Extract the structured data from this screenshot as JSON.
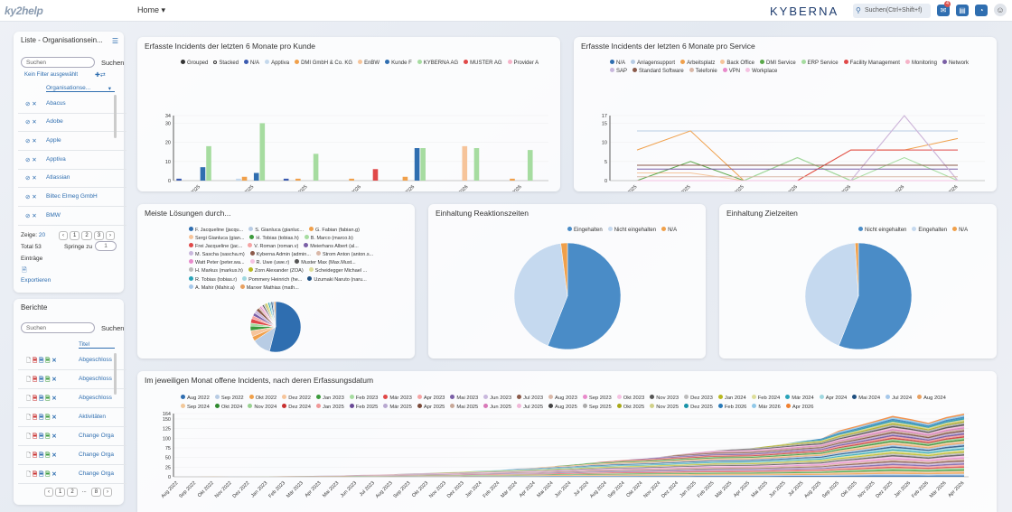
{
  "topbar": {
    "logo": "ky2help",
    "home": "Home",
    "home_caret": "▾",
    "brand": "KYBERNA",
    "search_placeholder": "Suchen(Ctrl+Shift+f)",
    "mail_badge": "4"
  },
  "org_panel": {
    "title": "Liste - Organisationsein...",
    "search_placeholder": "Suchen",
    "search_button": "Suchen",
    "filter_text": "Kein Filter ausgewählt",
    "column_header": "Organisationse...",
    "items": [
      "Abacus",
      "Adobe",
      "Apple",
      "Apptiva",
      "Atlassian",
      "Biltec Elmeg GmbH",
      "BMW"
    ],
    "show_label": "Zeige:",
    "show_value": "20",
    "pages": [
      "‹",
      "1",
      "2",
      "3",
      "›"
    ],
    "total": "Total 53",
    "jump_label": "Springe zu",
    "jump_value": "1",
    "entries": "Einträge",
    "export": "Exportieren"
  },
  "reports_panel": {
    "title": "Berichte",
    "search_placeholder": "Suchen",
    "search_button": "Suchen",
    "column_header": "Titel",
    "items": [
      "Abgeschloss",
      "Abgeschloss",
      "Abgeschloss",
      "Aktivitäten",
      "Change Orga",
      "Change Orga",
      "Change Orga"
    ],
    "pages": [
      "‹",
      "1",
      "2",
      "...",
      "8",
      "›"
    ]
  },
  "chart1": {
    "title": "Erfasste Incidents der letzten 6 Monate pro Kunde"
  },
  "chart2": {
    "title": "Erfasste Incidents der letzten 6 Monate pro Service"
  },
  "chart3": {
    "title": "Meiste Lösungen durch..."
  },
  "chart4": {
    "title": "Einhaltung Reaktionszeiten"
  },
  "chart5": {
    "title": "Einhaltung Zielzeiten"
  },
  "chart6": {
    "title": "Im jeweiligen Monat offene Incidents, nach deren Erfassungsdatum"
  },
  "colors": {
    "accent": "#2f6eb0",
    "pie_blue": "#4a8cc7",
    "pie_light": "#c5d9ef",
    "orange": "#f0a04b"
  },
  "chart_data": [
    {
      "type": "bar",
      "title": "Erfasste Incidents der letzten 6 Monate pro Kunde",
      "categories": [
        "Okt 2025",
        "Nov 2025",
        "Dez 2025",
        "Jan 2026",
        "Feb 2026",
        "Mär 2026",
        "Apr 2026"
      ],
      "ylim": [
        0,
        34
      ],
      "yticks": [
        0,
        10,
        20,
        30,
        34
      ],
      "legend_toggle": [
        "Grouped",
        "Stacked"
      ],
      "series": [
        {
          "name": "N/A",
          "color": "#3b5bb0",
          "values": [
            1,
            0,
            1,
            0,
            0,
            0,
            0
          ]
        },
        {
          "name": "Apptiva",
          "color": "#c4d8ec",
          "values": [
            0,
            1,
            0,
            0,
            0,
            0,
            0
          ]
        },
        {
          "name": "DMI GmbH & Co. KG",
          "color": "#f0a04b",
          "values": [
            0,
            2,
            1,
            1,
            2,
            0,
            1
          ]
        },
        {
          "name": "EnBW",
          "color": "#f6c49a",
          "values": [
            0,
            0,
            0,
            0,
            0,
            18,
            0
          ]
        },
        {
          "name": "Kunde F",
          "color": "#2f6eb0",
          "values": [
            7,
            4,
            0,
            0,
            17,
            0,
            0
          ]
        },
        {
          "name": "KYBERNA AG",
          "color": "#a6dca0",
          "values": [
            18,
            30,
            14,
            0,
            17,
            17,
            16
          ]
        },
        {
          "name": "MUSTER AG",
          "color": "#e04848",
          "values": [
            0,
            0,
            0,
            6,
            0,
            0,
            0
          ]
        },
        {
          "name": "Provider A",
          "color": "#f5b3c8",
          "values": [
            0,
            0,
            0,
            0,
            0,
            0,
            0
          ]
        }
      ]
    },
    {
      "type": "line",
      "title": "Erfasste Incidents der letzten 6 Monate pro Service",
      "categories": [
        "Okt 2025",
        "Nov 2025",
        "Dez 2025",
        "Jan 2026",
        "Feb 2026",
        "Mär 2026",
        "Apr 2026"
      ],
      "ylim": [
        0,
        17
      ],
      "yticks": [
        0,
        5,
        10,
        15,
        17
      ],
      "series": [
        {
          "name": "N/A",
          "color": "#2f6eb0",
          "values": [
            0,
            0,
            0,
            0,
            0,
            0,
            0
          ]
        },
        {
          "name": "Anlagensupport",
          "color": "#b8cce4",
          "values": [
            13,
            13,
            13,
            13,
            13,
            13,
            13
          ]
        },
        {
          "name": "Arbeitsplatz",
          "color": "#f0a04b",
          "values": [
            8,
            13,
            0,
            0,
            8,
            8,
            11
          ]
        },
        {
          "name": "Back Office",
          "color": "#f6c49a",
          "values": [
            2,
            2,
            0,
            0,
            0,
            0,
            0
          ]
        },
        {
          "name": "DMI Service",
          "color": "#5aa84a",
          "values": [
            0,
            5,
            0,
            6,
            0,
            0,
            0
          ]
        },
        {
          "name": "ERP Service",
          "color": "#a6dca0",
          "values": [
            0,
            0,
            0,
            6,
            0,
            6,
            0
          ]
        },
        {
          "name": "Facility Management",
          "color": "#e04848",
          "values": [
            0,
            0,
            0,
            0,
            8,
            8,
            8
          ]
        },
        {
          "name": "Monitoring",
          "color": "#f5b3c8",
          "values": [
            0,
            0,
            0,
            0,
            0,
            17,
            0
          ]
        },
        {
          "name": "Network",
          "color": "#7a5fa6",
          "values": [
            3,
            3,
            3,
            3,
            3,
            3,
            3
          ]
        },
        {
          "name": "SAP",
          "color": "#c9b8dd",
          "values": [
            0,
            0,
            0,
            0,
            0,
            17,
            0
          ]
        },
        {
          "name": "Standard Software",
          "color": "#8b5a4a",
          "values": [
            4,
            4,
            4,
            4,
            4,
            4,
            4
          ]
        },
        {
          "name": "Telefonie",
          "color": "#d9b8a8",
          "values": [
            1,
            1,
            1,
            1,
            1,
            1,
            1
          ]
        },
        {
          "name": "VPN",
          "color": "#e88acb",
          "values": [
            0,
            0,
            0,
            0,
            0,
            0,
            0
          ]
        },
        {
          "name": "Workplace",
          "color": "#f5c2e2",
          "values": [
            0,
            0,
            0,
            0,
            0,
            0,
            0
          ]
        }
      ]
    },
    {
      "type": "pie",
      "title": "Meiste Lösungen durch...",
      "series": [
        {
          "name": "F. Jacqueline (jacqu...",
          "color": "#2f6eb0",
          "value": 55
        },
        {
          "name": "S. Gianluca (gianluc...",
          "color": "#b8cce4",
          "value": 12
        },
        {
          "name": "G. Fabian (fabian.g)",
          "color": "#f0a04b",
          "value": 3
        },
        {
          "name": "Sergi Gianluca (gian...",
          "color": "#f6c49a",
          "value": 4
        },
        {
          "name": "H. Tobias (tobias.h)",
          "color": "#3c9a3c",
          "value": 3
        },
        {
          "name": "B. Marco (marco.b)",
          "color": "#a6dca0",
          "value": 2
        },
        {
          "name": "Frei Jacqueline (jac...",
          "color": "#e04848",
          "value": 3
        },
        {
          "name": "V. Roman (roman.v)",
          "color": "#f5a3a3",
          "value": 2
        },
        {
          "name": "Meierhans Albert (al...",
          "color": "#7a5fa6",
          "value": 2
        },
        {
          "name": "M. Sascha (sascha.m)",
          "color": "#c9b8dd",
          "value": 2
        },
        {
          "name": "Kyberna Admin (admin...",
          "color": "#8b5a4a",
          "value": 2
        },
        {
          "name": "Strom Anton (anton.s...",
          "color": "#d9b8a8",
          "value": 1
        },
        {
          "name": "Watt Peter (peter.wa...",
          "color": "#e88acb",
          "value": 1
        },
        {
          "name": "R. Uwe (uwe.r)",
          "color": "#f5c2e2",
          "value": 1
        },
        {
          "name": "Muster Max (Max.Must...",
          "color": "#555555",
          "value": 1
        },
        {
          "name": "H. Markus (markus.h)",
          "color": "#bbbbbb",
          "value": 1
        },
        {
          "name": "Zorn Alexander (ZOA)",
          "color": "#b8b820",
          "value": 1
        },
        {
          "name": "Scheidegger Michael ...",
          "color": "#dddd99",
          "value": 1
        },
        {
          "name": "R. Tobias (tobias.r)",
          "color": "#29a3b8",
          "value": 1
        },
        {
          "name": "Pommery Heinrich (he...",
          "color": "#a0d8e0",
          "value": 1
        },
        {
          "name": "Uzumaki Naruto (naru...",
          "color": "#1e4f80",
          "value": 1
        },
        {
          "name": "A. Mahir (Mahir.a)",
          "color": "#a6c8ea",
          "value": 1
        },
        {
          "name": "Marxer Mathias (math...",
          "color": "#e8a060",
          "value": 1
        }
      ]
    },
    {
      "type": "pie",
      "title": "Einhaltung Reaktionszeiten",
      "series": [
        {
          "name": "Eingehalten",
          "color": "#4a8cc7",
          "value": 56
        },
        {
          "name": "Nicht eingehalten",
          "color": "#c5d9ef",
          "value": 42
        },
        {
          "name": "N/A",
          "color": "#f0a04b",
          "value": 2
        }
      ]
    },
    {
      "type": "pie",
      "title": "Einhaltung Zielzeiten",
      "series": [
        {
          "name": "Nicht eingehalten",
          "color": "#4a8cc7",
          "value": 56
        },
        {
          "name": "Eingehalten",
          "color": "#c5d9ef",
          "value": 43
        },
        {
          "name": "N/A",
          "color": "#f0a04b",
          "value": 1
        }
      ]
    },
    {
      "type": "area",
      "title": "Im jeweiligen Monat offene Incidents, nach deren Erfassungsdatum",
      "ylim": [
        0,
        164
      ],
      "yticks": [
        0,
        25,
        50,
        75,
        100,
        125,
        150,
        164
      ],
      "categories": [
        "Aug 2022",
        "Sep 2022",
        "Okt 2022",
        "Nov 2022",
        "Dez 2022",
        "Jan 2023",
        "Feb 2023",
        "Mär 2023",
        "Apr 2023",
        "Mai 2023",
        "Jun 2023",
        "Jul 2023",
        "Aug 2023",
        "Sep 2023",
        "Okt 2023",
        "Nov 2023",
        "Dez 2023",
        "Jan 2024",
        "Feb 2024",
        "Mär 2024",
        "Apr 2024",
        "Mai 2024",
        "Jun 2024",
        "Jul 2024",
        "Aug 2024",
        "Sep 2024",
        "Okt 2024",
        "Nov 2024",
        "Dez 2024",
        "Jan 2025",
        "Feb 2025",
        "Mär 2025",
        "Apr 2025",
        "Mai 2025",
        "Jun 2025",
        "Jul 2025",
        "Aug 2025",
        "Sep 2025",
        "Okt 2025",
        "Nov 2025",
        "Dez 2025",
        "Jan 2026",
        "Feb 2026",
        "Mär 2026",
        "Apr 2026"
      ],
      "legend": [
        {
          "name": "Aug 2022",
          "color": "#2f6eb0"
        },
        {
          "name": "Sep 2022",
          "color": "#b8cce4"
        },
        {
          "name": "Okt 2022",
          "color": "#f0a04b"
        },
        {
          "name": "Dez 2022",
          "color": "#f6c49a"
        },
        {
          "name": "Jan 2023",
          "color": "#3c9a3c"
        },
        {
          "name": "Feb 2023",
          "color": "#a6dca0"
        },
        {
          "name": "Mär 2023",
          "color": "#e04848"
        },
        {
          "name": "Apr 2023",
          "color": "#f5a3a3"
        },
        {
          "name": "Mai 2023",
          "color": "#7a5fa6"
        },
        {
          "name": "Jun 2023",
          "color": "#c9b8dd"
        },
        {
          "name": "Jul 2023",
          "color": "#8b5a4a"
        },
        {
          "name": "Aug 2023",
          "color": "#d9b8a8"
        },
        {
          "name": "Sep 2023",
          "color": "#e88acb"
        },
        {
          "name": "Okt 2023",
          "color": "#f5c2e2"
        },
        {
          "name": "Nov 2023",
          "color": "#555555"
        },
        {
          "name": "Dez 2023",
          "color": "#bbbbbb"
        },
        {
          "name": "Jan 2024",
          "color": "#b8b820"
        },
        {
          "name": "Feb 2024",
          "color": "#dddd99"
        },
        {
          "name": "Mär 2024",
          "color": "#29a3b8"
        },
        {
          "name": "Apr 2024",
          "color": "#a0d8e0"
        },
        {
          "name": "Mai 2024",
          "color": "#1e4f80"
        },
        {
          "name": "Jul 2024",
          "color": "#a6c8ea"
        },
        {
          "name": "Aug 2024",
          "color": "#e8a060"
        },
        {
          "name": "Sep 2024",
          "color": "#f2c89a"
        },
        {
          "name": "Okt 2024",
          "color": "#2f8a2f"
        },
        {
          "name": "Nov 2024",
          "color": "#98d090"
        },
        {
          "name": "Dez 2024",
          "color": "#c83030"
        },
        {
          "name": "Jan 2025",
          "color": "#f09898"
        },
        {
          "name": "Feb 2025",
          "color": "#6a4a96"
        },
        {
          "name": "Mär 2025",
          "color": "#b8a8d0"
        },
        {
          "name": "Apr 2025",
          "color": "#7a4a3a"
        },
        {
          "name": "Mai 2025",
          "color": "#c8a898"
        },
        {
          "name": "Jun 2025",
          "color": "#d878b8"
        },
        {
          "name": "Jul 2025",
          "color": "#f0b8d8"
        },
        {
          "name": "Aug 2025",
          "color": "#444444"
        },
        {
          "name": "Sep 2025",
          "color": "#aaaaaa"
        },
        {
          "name": "Okt 2025",
          "color": "#a8a818"
        },
        {
          "name": "Nov 2025",
          "color": "#d0d088"
        },
        {
          "name": "Dez 2025",
          "color": "#1893a8"
        },
        {
          "name": "Feb 2026",
          "color": "#2a7ab8"
        },
        {
          "name": "Mär 2026",
          "color": "#90c8e8"
        },
        {
          "name": "Apr 2026",
          "color": "#f08030"
        }
      ],
      "totals": [
        1,
        2,
        3,
        4,
        5,
        6,
        8,
        10,
        12,
        14,
        16,
        18,
        20,
        23,
        26,
        28,
        31,
        34,
        37,
        40,
        43,
        48,
        52,
        58,
        62,
        66,
        68,
        72,
        76,
        80,
        84,
        85,
        86,
        90,
        95,
        100,
        104,
        120,
        132,
        145,
        158,
        150,
        140,
        155,
        164
      ]
    }
  ]
}
